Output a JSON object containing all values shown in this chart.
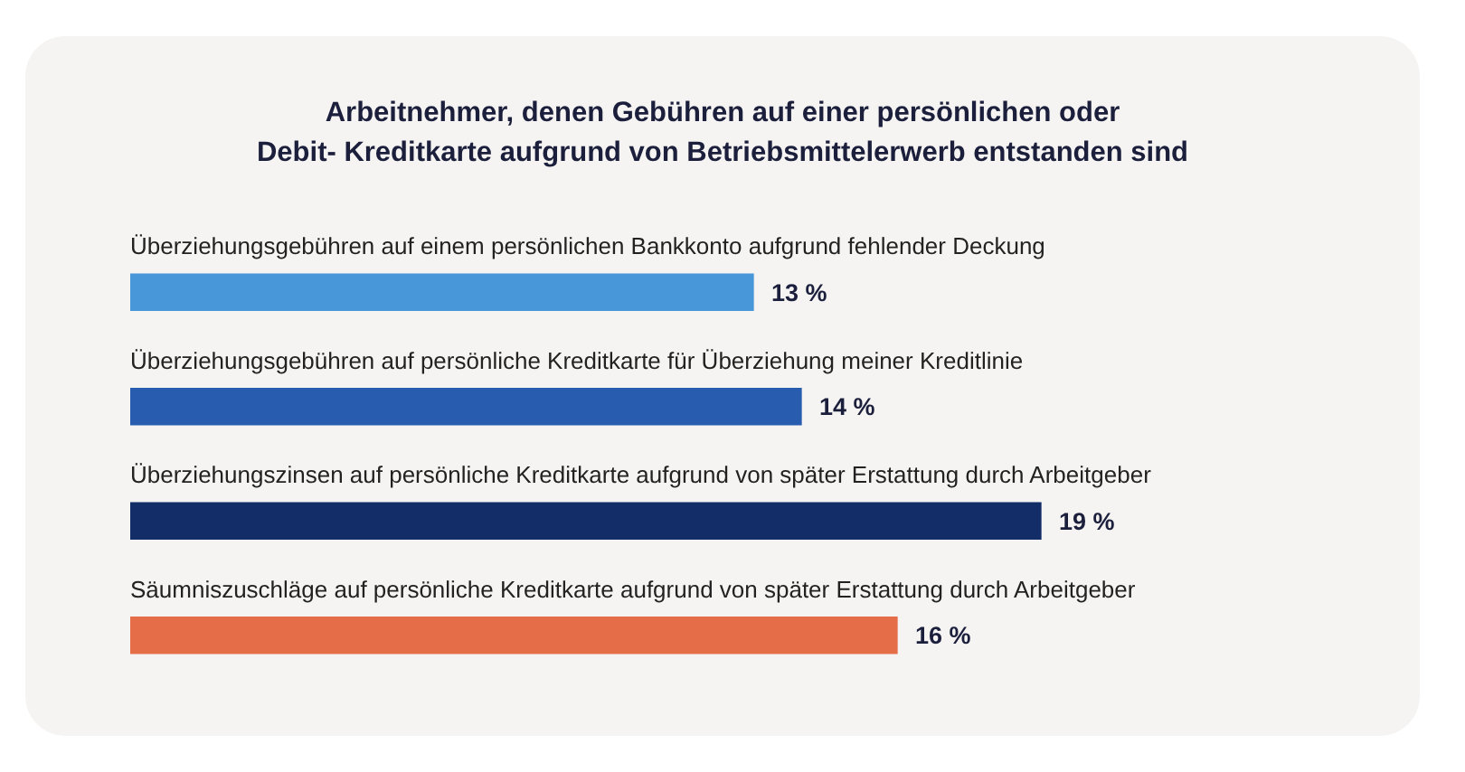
{
  "chart_data": {
    "type": "bar",
    "orientation": "horizontal",
    "title": "Arbeitnehmer, denen Gebühren auf einer persönlichen oder\nDebit- Kreditkarte aufgrund von Betriebsmittelerwerb entstanden sind",
    "categories": [
      "Überziehungsgebühren auf einem persönlichen Bankkonto aufgrund fehlender Deckung",
      "Überziehungsgebühren auf persönliche Kreditkarte für Überziehung meiner Kreditlinie",
      "Überziehungszinsen auf persönliche Kreditkarte aufgrund von später Erstattung durch Arbeitgeber",
      "Säumniszuschläge auf persönliche Kreditkarte aufgrund von später Erstattung durch Arbeitgeber"
    ],
    "values": [
      13,
      14,
      19,
      16
    ],
    "colors": [
      "#4797d9",
      "#285caf",
      "#132d69",
      "#e56d48"
    ],
    "value_labels": [
      "13 %",
      "14 %",
      "19 %",
      "16 %"
    ]
  }
}
